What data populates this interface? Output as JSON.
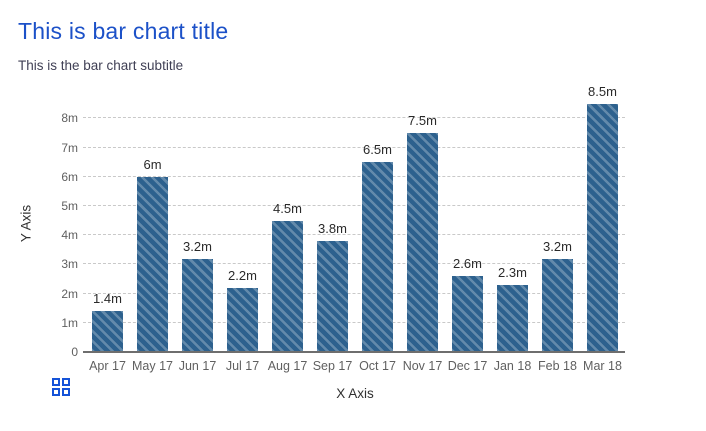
{
  "chart_data": {
    "type": "bar",
    "title": "This is bar chart title",
    "subtitle": "This is the bar chart subtitle",
    "xlabel": "X Axis",
    "ylabel": "Y Axis",
    "categories": [
      "Apr 17",
      "May 17",
      "Jun 17",
      "Jul 17",
      "Aug 17",
      "Sep 17",
      "Oct 17",
      "Nov 17",
      "Dec 17",
      "Jan 18",
      "Feb 18",
      "Mar 18"
    ],
    "values": [
      1.4,
      6,
      3.2,
      2.2,
      4.5,
      3.8,
      6.5,
      7.5,
      2.6,
      2.3,
      3.2,
      8.5
    ],
    "value_labels": [
      "1.4m",
      "6m",
      "3.2m",
      "2.2m",
      "4.5m",
      "3.8m",
      "6.5m",
      "7.5m",
      "2.6m",
      "2.3m",
      "3.2m",
      "8.5m"
    ],
    "y_tick_values": [
      0,
      1,
      2,
      3,
      4,
      5,
      6,
      7,
      8
    ],
    "y_tick_labels": [
      "0",
      "1m",
      "2m",
      "3m",
      "4m",
      "5m",
      "6m",
      "7m",
      "8m"
    ],
    "ylim": [
      0,
      8.5
    ],
    "grid": "horizontal-dashed",
    "legend": "none",
    "colors": {
      "title": "#1c51c8",
      "subtitle": "#3f3f54",
      "bar": "#2d618e",
      "bar_hatch": "light diagonal stripes",
      "gridline": "#c9c9c9",
      "axis_line": "#6e6e6e",
      "tick_label": "#5f5f5f"
    }
  },
  "footer": {
    "grid_icon": "grid-2x2-icon",
    "icon_color": "#1553d8"
  }
}
